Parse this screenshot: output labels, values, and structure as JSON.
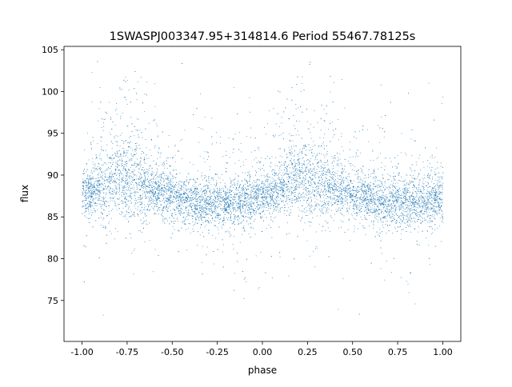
{
  "chart_data": {
    "type": "scatter",
    "title": "1SWASPJ003347.95+314814.6 Period 55467.78125s",
    "xlabel": "phase",
    "ylabel": "flux",
    "xlim": [
      -1.1,
      1.1
    ],
    "ylim": [
      70.1,
      105.4
    ],
    "xticks": [
      "-1.00",
      "-0.75",
      "-0.50",
      "-0.25",
      "0.00",
      "0.25",
      "0.50",
      "0.75",
      "1.00"
    ],
    "xtick_values": [
      -1,
      -0.75,
      -0.5,
      -0.25,
      0,
      0.25,
      0.5,
      0.75,
      1
    ],
    "yticks": [
      "75",
      "80",
      "85",
      "90",
      "95",
      "100",
      "105"
    ],
    "ytick_values": [
      75,
      80,
      85,
      90,
      95,
      100,
      105
    ],
    "grid": false,
    "color": "#1f77b4",
    "series": [
      {
        "phase": [
          -1.0,
          -0.9,
          -0.8,
          -0.75,
          -0.65,
          -0.5,
          -0.4,
          -0.3,
          -0.2,
          -0.1,
          0.0,
          0.1,
          0.2,
          0.25,
          0.35,
          0.5,
          0.6,
          0.7,
          0.8,
          0.9,
          1.0
        ],
        "flux_median": [
          87.5,
          88.5,
          89.5,
          89.2,
          88.6,
          87.4,
          86.7,
          86.4,
          86.5,
          86.8,
          87.2,
          88.3,
          89.5,
          89.2,
          88.6,
          87.4,
          86.7,
          86.4,
          86.5,
          86.8,
          87.3
        ]
      }
    ]
  }
}
